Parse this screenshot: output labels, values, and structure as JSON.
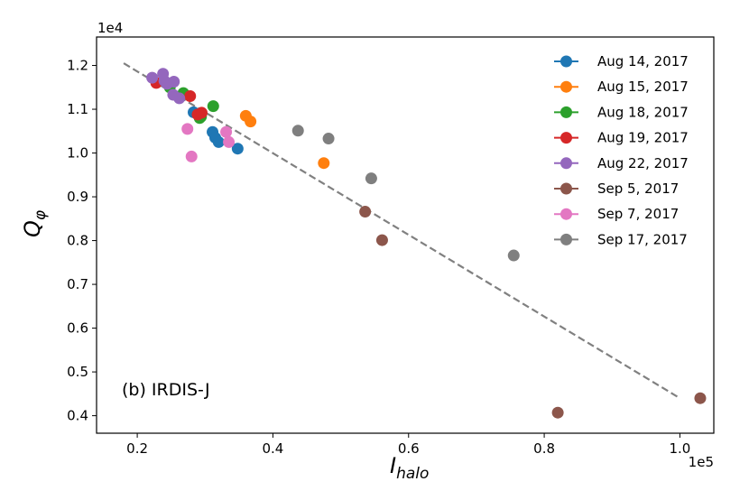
{
  "chart_data": {
    "type": "scatter",
    "xlabel": "I",
    "xlabel_sub": "halo",
    "ylabel": "Q",
    "ylabel_sub": "φ",
    "x_multiplier": "1e5",
    "y_multiplier": "1e4",
    "xlim": [
      0.14,
      1.05
    ],
    "ylim": [
      0.36,
      1.265
    ],
    "xticks": [
      0.2,
      0.4,
      0.6,
      0.8,
      1.0
    ],
    "xtick_labels": [
      "0.2",
      "0.4",
      "0.6",
      "0.8",
      "1.0"
    ],
    "yticks": [
      0.4,
      0.5,
      0.6,
      0.7,
      0.8,
      0.9,
      1.0,
      1.1,
      1.2
    ],
    "ytick_labels": [
      "0.4",
      "0.5",
      "0.6",
      "0.7",
      "0.8",
      "0.9",
      "1.0",
      "1.1",
      "1.2"
    ],
    "grid": false,
    "legend_position": "top-right",
    "annotation": "(b) IRDIS-J",
    "fit_line": {
      "x": [
        0.18,
        1.0
      ],
      "y": [
        1.205,
        0.44
      ],
      "color": "#808080",
      "style": "dashed"
    },
    "series": [
      {
        "name": "Aug 14, 2017",
        "color": "#1f77b4",
        "x": [
          0.283,
          0.311,
          0.315,
          0.32,
          0.348
        ],
        "y": [
          1.093,
          1.048,
          1.035,
          1.025,
          1.01
        ]
      },
      {
        "name": "Aug 15, 2017",
        "color": "#ff7f0e",
        "x": [
          0.36,
          0.367,
          0.475
        ],
        "y": [
          1.085,
          1.072,
          0.977
        ]
      },
      {
        "name": "Aug 18, 2017",
        "color": "#2ca02c",
        "x": [
          0.248,
          0.268,
          0.292,
          0.294,
          0.312
        ],
        "y": [
          1.15,
          1.137,
          1.08,
          1.083,
          1.107
        ]
      },
      {
        "name": "Aug 19, 2017",
        "color": "#d62728",
        "x": [
          0.228,
          0.278,
          0.289,
          0.295
        ],
        "y": [
          1.16,
          1.13,
          1.088,
          1.092
        ]
      },
      {
        "name": "Aug 22, 2017",
        "color": "#9467bd",
        "x": [
          0.222,
          0.238,
          0.24,
          0.244,
          0.254,
          0.253,
          0.262
        ],
        "y": [
          1.172,
          1.181,
          1.165,
          1.158,
          1.163,
          1.133,
          1.125
        ]
      },
      {
        "name": "Sep 5, 2017",
        "color": "#8c564b",
        "x": [
          0.536,
          0.561,
          0.82,
          1.03
        ],
        "y": [
          0.866,
          0.801,
          0.407,
          0.44
        ]
      },
      {
        "name": "Sep 7, 2017",
        "color": "#e377c2",
        "x": [
          0.274,
          0.28,
          0.331,
          0.335
        ],
        "y": [
          1.055,
          0.992,
          1.048,
          1.025
        ]
      },
      {
        "name": "Sep 17, 2017",
        "color": "#7f7f7f",
        "x": [
          0.437,
          0.482,
          0.545,
          0.755
        ],
        "y": [
          1.051,
          1.033,
          0.942,
          0.766
        ]
      }
    ]
  }
}
